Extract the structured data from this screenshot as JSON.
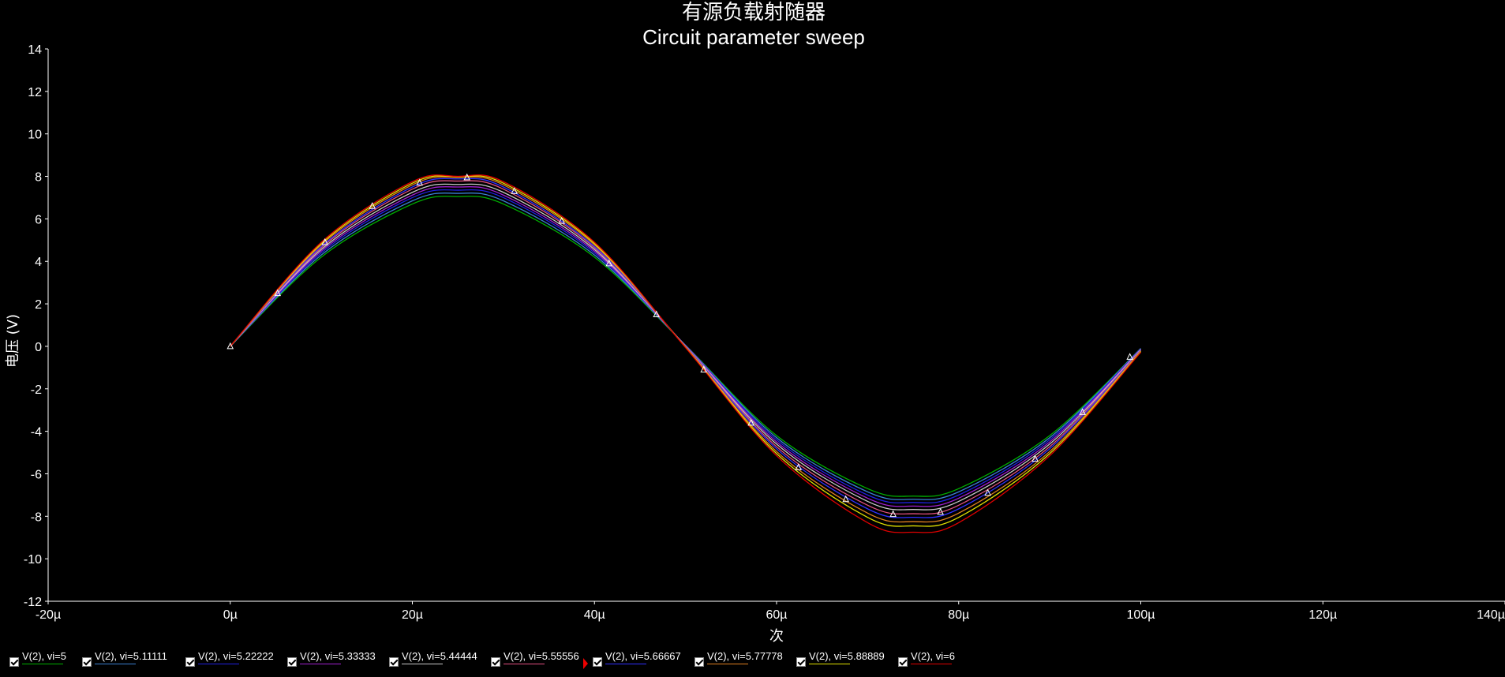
{
  "chart_data": {
    "type": "line",
    "title": "有源负载射随器",
    "subtitle": "Circuit parameter sweep",
    "xlabel": "次",
    "ylabel": "电压 (V)",
    "xlim": [
      -20,
      140
    ],
    "ylim": [
      -12,
      14
    ],
    "x_unit": "µs",
    "x_ticks": [
      -20,
      0,
      20,
      40,
      60,
      80,
      100,
      120,
      140
    ],
    "x_tick_labels": [
      "-20µ",
      "0µ",
      "20µ",
      "40µ",
      "60µ",
      "80µ",
      "100µ",
      "120µ",
      "140µ"
    ],
    "y_ticks": [
      -12,
      -10,
      -8,
      -6,
      -4,
      -2,
      0,
      2,
      4,
      6,
      8,
      10,
      12,
      14
    ],
    "y_tick_labels": [
      "-12",
      "-10",
      "-8",
      "-6",
      "-4",
      "-2",
      "0",
      "2",
      "4",
      "6",
      "8",
      "10",
      "12",
      "14"
    ],
    "x": [
      0,
      10,
      20,
      25,
      30,
      40,
      50,
      60,
      70,
      75,
      80,
      90,
      100
    ],
    "series": [
      {
        "name": "V(2), vi=5",
        "color": "#00b000",
        "values": [
          0,
          4.2,
          6.7,
          7.05,
          6.7,
          4.2,
          0.05,
          -4.2,
          -6.7,
          -7.05,
          -6.7,
          -4.2,
          -0.1
        ]
      },
      {
        "name": "V(2), vi=5.11111",
        "color": "#3a7fd0",
        "values": [
          0,
          4.3,
          6.85,
          7.2,
          6.85,
          4.3,
          0.05,
          -4.3,
          -6.85,
          -7.2,
          -6.85,
          -4.3,
          -0.1
        ]
      },
      {
        "name": "V(2), vi=5.22222",
        "color": "#2020e0",
        "values": [
          0,
          4.4,
          7.0,
          7.35,
          7.0,
          4.4,
          0.04,
          -4.4,
          -7.0,
          -7.35,
          -7.0,
          -4.4,
          -0.12
        ]
      },
      {
        "name": "V(2), vi=5.33333",
        "color": "#a020d0",
        "values": [
          0,
          4.48,
          7.12,
          7.5,
          7.12,
          4.48,
          0.03,
          -4.5,
          -7.15,
          -7.52,
          -7.15,
          -4.5,
          -0.14
        ]
      },
      {
        "name": "V(2), vi=5.44444",
        "color": "#c8c8c8",
        "values": [
          0,
          4.56,
          7.25,
          7.62,
          7.25,
          4.56,
          0.02,
          -4.6,
          -7.3,
          -7.68,
          -7.3,
          -4.6,
          -0.16
        ]
      },
      {
        "name": "V(2), vi=5.55556",
        "color": "#e05080",
        "values": [
          0,
          4.64,
          7.4,
          7.78,
          7.4,
          4.64,
          0.01,
          -4.72,
          -7.48,
          -7.88,
          -7.48,
          -4.72,
          -0.18
        ]
      },
      {
        "name": "V(2), vi=5.66667",
        "color": "#3030ff",
        "values": [
          0,
          4.7,
          7.5,
          7.88,
          7.5,
          4.7,
          0.0,
          -4.82,
          -7.65,
          -8.05,
          -7.65,
          -4.82,
          -0.2
        ]
      },
      {
        "name": "V(2), vi=5.77778",
        "color": "#e08020",
        "values": [
          0,
          4.78,
          7.6,
          7.95,
          7.6,
          4.78,
          -0.02,
          -4.95,
          -7.85,
          -8.25,
          -7.85,
          -4.95,
          -0.22
        ]
      },
      {
        "name": "V(2), vi=5.88889",
        "color": "#e0e000",
        "values": [
          0,
          4.84,
          7.68,
          7.98,
          7.68,
          4.84,
          -0.04,
          -5.05,
          -8.05,
          -8.45,
          -8.05,
          -5.05,
          -0.25
        ]
      },
      {
        "name": "V(2), vi=6",
        "color": "#e00000",
        "values": [
          0,
          4.9,
          7.75,
          8.0,
          7.75,
          4.9,
          -0.06,
          -5.15,
          -8.3,
          -8.75,
          -8.3,
          -5.15,
          -0.28
        ]
      }
    ],
    "markers": {
      "series": "V(2), vi=5.44444",
      "x": [
        0,
        5.2,
        10.4,
        15.6,
        20.8,
        26,
        31.2,
        36.4,
        41.6,
        46.8,
        52,
        57.2,
        62.4,
        67.6,
        72.8,
        78,
        83.2,
        88.4,
        93.6,
        98.8
      ],
      "values": [
        0,
        2.5,
        4.9,
        6.6,
        7.7,
        7.95,
        7.3,
        5.9,
        3.9,
        1.5,
        -1.1,
        -3.6,
        -5.7,
        -7.2,
        -7.9,
        -7.8,
        -6.9,
        -5.3,
        -3.1,
        -0.5
      ]
    },
    "grid": false,
    "legend_position": "bottom"
  },
  "legend": {
    "items": [
      {
        "label": "V(2), vi=5",
        "color": "#00b000",
        "checked": true
      },
      {
        "label": "V(2), vi=5.11111",
        "color": "#3a7fd0",
        "checked": true
      },
      {
        "label": "V(2), vi=5.22222",
        "color": "#2020e0",
        "checked": true
      },
      {
        "label": "V(2), vi=5.33333",
        "color": "#a020d0",
        "checked": true
      },
      {
        "label": "V(2), vi=5.44444",
        "color": "#c8c8c8",
        "checked": true
      },
      {
        "label": "V(2), vi=5.55556",
        "color": "#e05080",
        "checked": true
      },
      {
        "label": "V(2), vi=5.66667",
        "color": "#3030ff",
        "checked": true,
        "cursor": true
      },
      {
        "label": "V(2), vi=5.77778",
        "color": "#e08020",
        "checked": true
      },
      {
        "label": "V(2), vi=5.88889",
        "color": "#e0e000",
        "checked": true
      },
      {
        "label": "V(2), vi=6",
        "color": "#e00000",
        "checked": true
      }
    ]
  }
}
